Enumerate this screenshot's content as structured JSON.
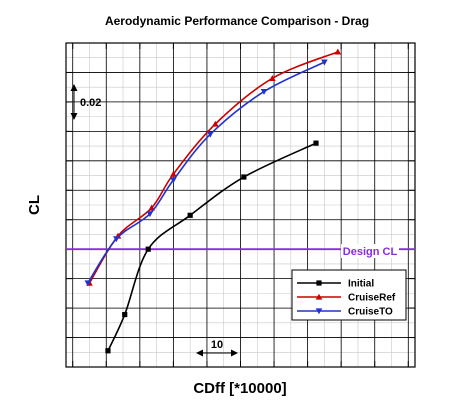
{
  "chart_data": {
    "type": "line",
    "title": "Aerodynamic Performance Comparison - Drag",
    "xlabel": "CDff [*10000]",
    "ylabel": "CL",
    "xlim": [
      148,
      252
    ],
    "ylim": [
      0.09,
      0.2
    ],
    "x_grid_major": 10,
    "y_grid_major": 0.01,
    "grid": true,
    "tick_labels_shown": false,
    "scale_annotations": {
      "x": "10",
      "y": "0.02"
    },
    "reference_line": {
      "label": "Design CL",
      "y": 0.13,
      "color": "#8a2be2"
    },
    "legend_position": "bottom-right",
    "series": [
      {
        "name": "Initial",
        "color": "#000000",
        "marker": "square",
        "x": [
          160.5,
          165.5,
          172.5,
          185.0,
          201.0,
          222.5
        ],
        "y": [
          0.0955,
          0.1078,
          0.13,
          0.1415,
          0.1545,
          0.166
        ]
      },
      {
        "name": "CruiseRef",
        "color": "#cc0000",
        "marker": "triangle-up",
        "x": [
          155.0,
          163.5,
          173.5,
          180.0,
          192.5,
          209.5,
          229.0
        ],
        "y": [
          0.1185,
          0.1345,
          0.144,
          0.1555,
          0.1725,
          0.188,
          0.197
        ]
      },
      {
        "name": "CruiseTO",
        "color": "#2233cc",
        "marker": "triangle-down",
        "x": [
          154.5,
          163.0,
          173.0,
          180.0,
          191.0,
          207.0,
          225.0
        ],
        "y": [
          0.1185,
          0.1335,
          0.142,
          0.1535,
          0.169,
          0.1835,
          0.1935
        ]
      }
    ]
  }
}
